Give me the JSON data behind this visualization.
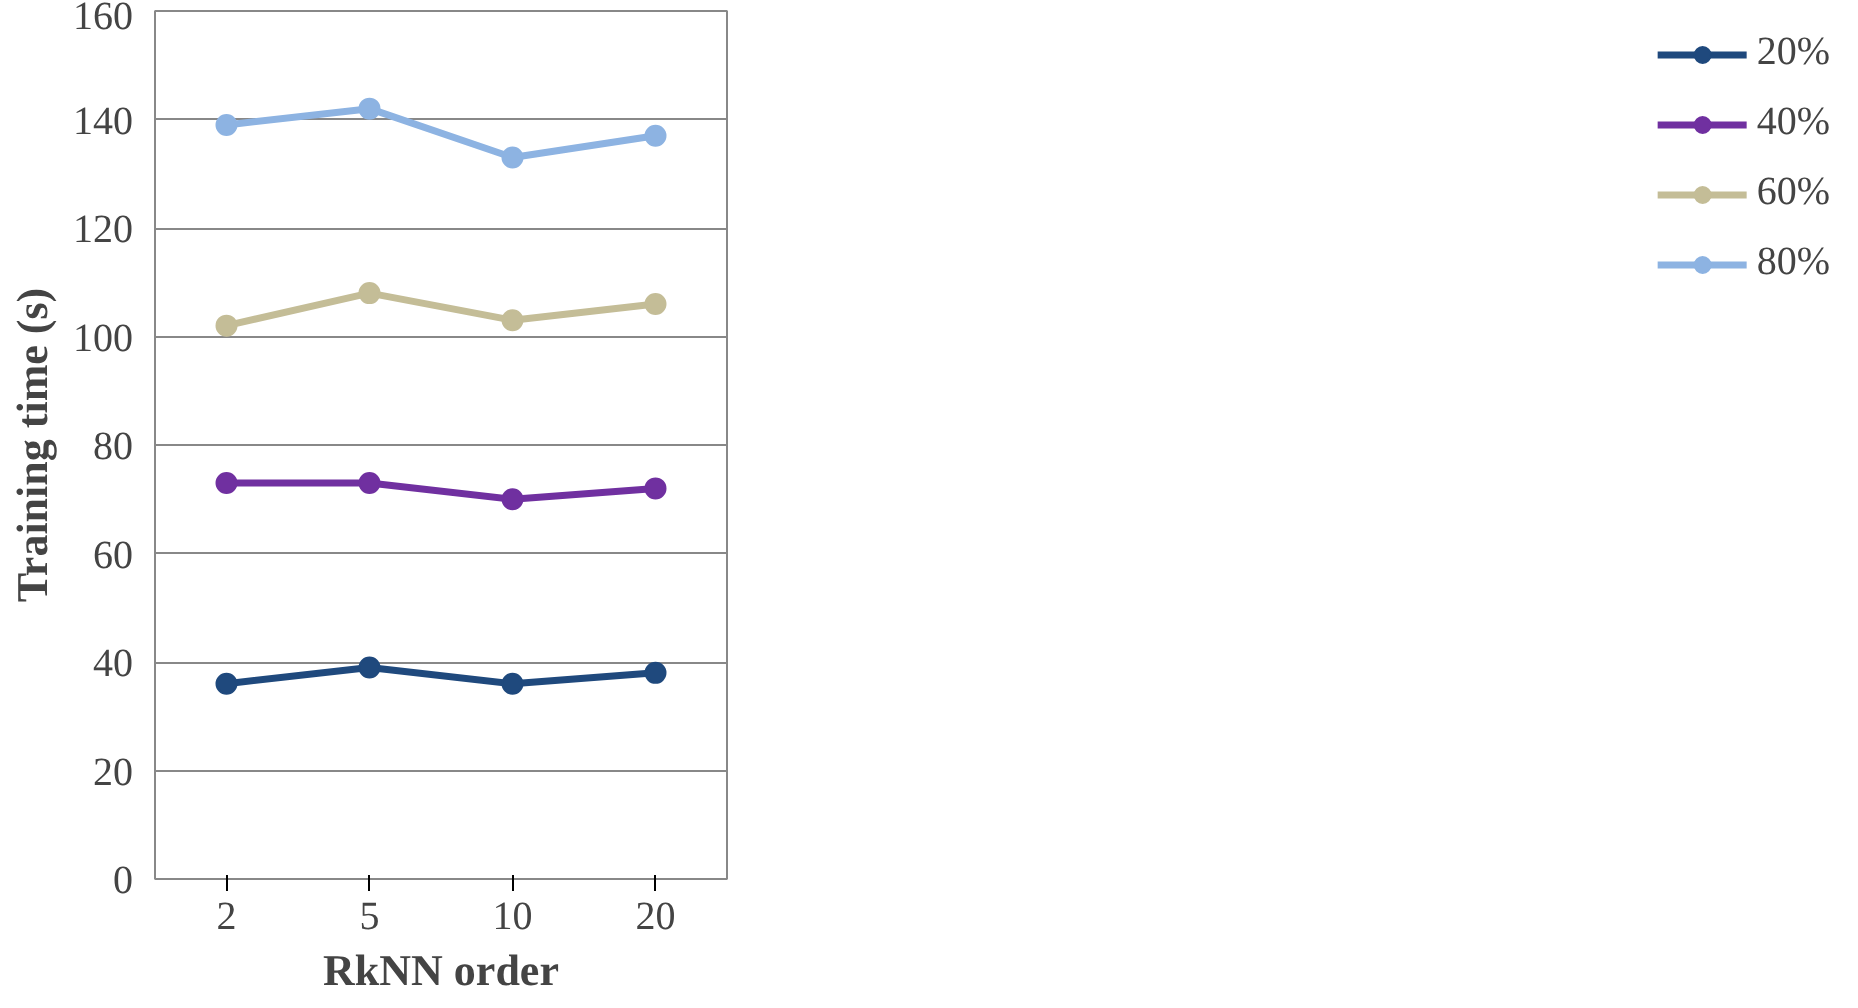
{
  "chart_data": {
    "type": "line",
    "xlabel": "RkNN order",
    "ylabel": "Training time (s)",
    "categories": [
      "2",
      "5",
      "10",
      "20"
    ],
    "series": [
      {
        "name": "20%",
        "color": "#1f497d",
        "values": [
          36,
          39,
          36,
          38
        ]
      },
      {
        "name": "40%",
        "color": "#7030a0",
        "values": [
          73,
          73,
          70,
          72
        ]
      },
      {
        "name": "60%",
        "color": "#c4bd97",
        "values": [
          102,
          108,
          103,
          106
        ]
      },
      {
        "name": "80%",
        "color": "#8db3e2",
        "values": [
          139,
          142,
          133,
          137
        ]
      }
    ],
    "ylim": [
      0,
      160
    ],
    "yticks": [
      0,
      20,
      40,
      60,
      80,
      100,
      120,
      140,
      160
    ],
    "grid": "y",
    "legend": "right",
    "marker": "circle",
    "line_style": "solid"
  }
}
